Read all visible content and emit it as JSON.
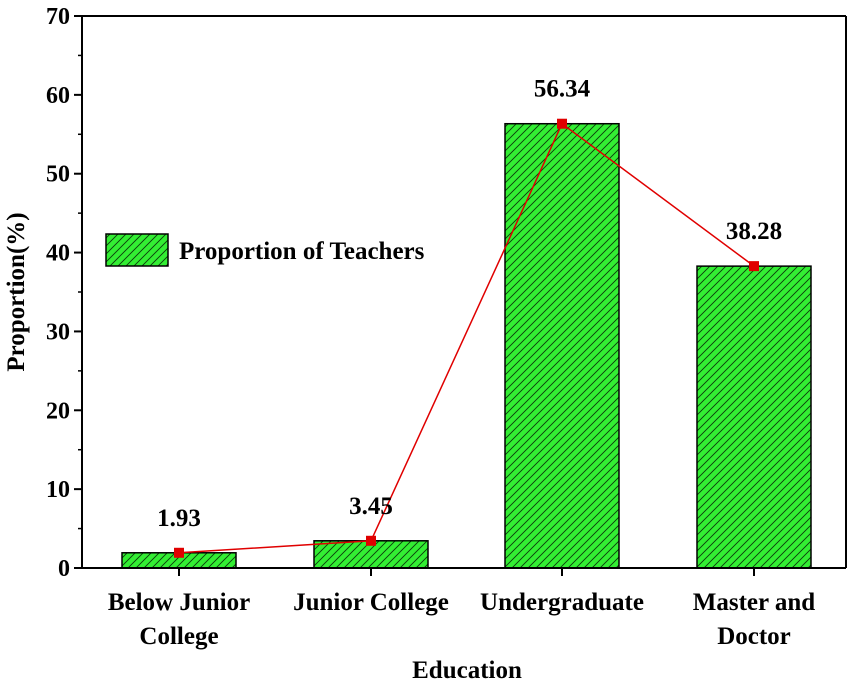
{
  "chart_data": {
    "type": "bar",
    "categories": [
      [
        "Below Junior",
        "College"
      ],
      [
        "Junior College"
      ],
      [
        "Undergraduate"
      ],
      [
        "Master and",
        "Doctor"
      ]
    ],
    "series": [
      {
        "name": "Proportion of Teachers",
        "values": [
          1.93,
          3.45,
          56.34,
          38.28
        ]
      }
    ],
    "data_labels": [
      "1.93",
      "3.45",
      "56.34",
      "38.28"
    ],
    "overlay_line": {
      "values": [
        1.93,
        3.45,
        56.34,
        38.28
      ],
      "color": "#e00000"
    },
    "xlabel": "Education",
    "ylabel": "Proportion(%)",
    "ylim": [
      0,
      70
    ],
    "yticks": [
      0,
      10,
      20,
      30,
      40,
      50,
      60,
      70
    ],
    "grid": false,
    "legend_position": "middle-left",
    "colors": {
      "bar_fill": "#33ee33",
      "bar_stroke": "#000000",
      "line": "#e00000",
      "marker": "#e00000"
    }
  }
}
